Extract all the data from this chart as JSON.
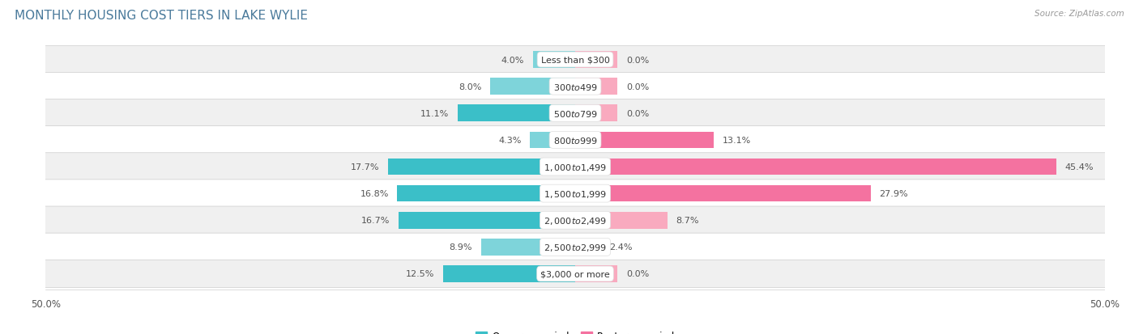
{
  "title": "MONTHLY HOUSING COST TIERS IN LAKE WYLIE",
  "source": "Source: ZipAtlas.com",
  "categories": [
    "Less than $300",
    "$300 to $499",
    "$500 to $799",
    "$800 to $999",
    "$1,000 to $1,499",
    "$1,500 to $1,999",
    "$2,000 to $2,499",
    "$2,500 to $2,999",
    "$3,000 or more"
  ],
  "owner_values": [
    4.0,
    8.0,
    11.1,
    4.3,
    17.7,
    16.8,
    16.7,
    8.9,
    12.5
  ],
  "renter_values": [
    0.0,
    0.0,
    0.0,
    13.1,
    45.4,
    27.9,
    8.7,
    2.4,
    0.0
  ],
  "owner_color_dark": "#3BBFC8",
  "owner_color_light": "#7ED4DA",
  "renter_color_dark": "#F472A0",
  "renter_color_light": "#F9AABF",
  "renter_stub": 4.0,
  "axis_limit": 50.0,
  "background_color": "#ffffff",
  "row_bg_even": "#f0f0f0",
  "row_bg_odd": "#ffffff",
  "title_color": "#4a7a9b",
  "label_color": "#555555",
  "source_color": "#999999",
  "title_fontsize": 11,
  "label_fontsize": 8,
  "category_fontsize": 8,
  "source_fontsize": 7.5,
  "legend_fontsize": 8.5
}
